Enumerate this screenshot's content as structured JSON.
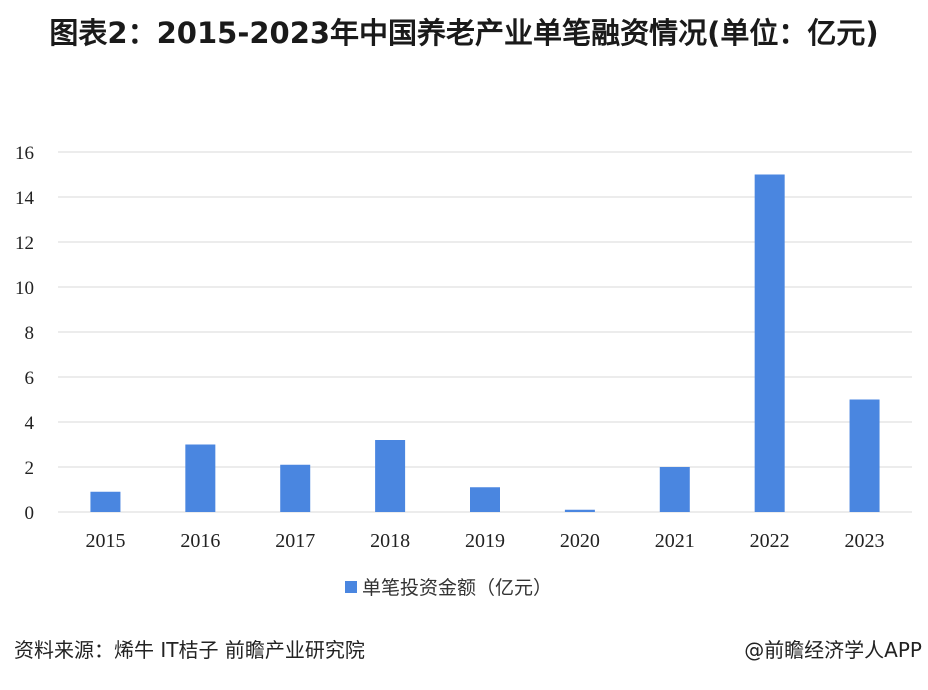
{
  "title": "图表2：2015-2023年中国养老产业单笔融资情况(单位：亿元)",
  "chart_data": {
    "type": "bar",
    "categories": [
      "2015",
      "2016",
      "2017",
      "2018",
      "2019",
      "2020",
      "2021",
      "2022",
      "2023"
    ],
    "series": [
      {
        "name": "单笔投资金额（亿元）",
        "values": [
          0.9,
          3.0,
          2.1,
          3.2,
          1.1,
          0.1,
          2.0,
          15.0,
          5.0
        ],
        "color": "#4a86e0"
      }
    ],
    "yticks": [
      "0",
      "2",
      "4",
      "6",
      "8",
      "10",
      "12",
      "14",
      "16"
    ],
    "ylim": [
      0,
      16
    ],
    "grid": true,
    "legend_position": "bottom-center"
  },
  "footer": {
    "source": "资料来源：烯牛 IT桔子 前瞻产业研究院",
    "credit": "@前瞻经济学人APP"
  }
}
